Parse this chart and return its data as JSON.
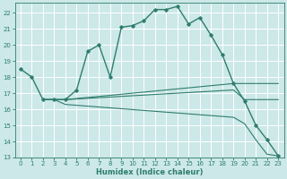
{
  "bg_color": "#cce8e8",
  "grid_color": "#ffffff",
  "line_color": "#2e7d6e",
  "xlabel": "Humidex (Indice chaleur)",
  "xlim": [
    -0.5,
    23.5
  ],
  "ylim": [
    13,
    22.6
  ],
  "yticks": [
    13,
    14,
    15,
    16,
    17,
    18,
    19,
    20,
    21,
    22
  ],
  "xticks": [
    0,
    1,
    2,
    3,
    4,
    5,
    6,
    7,
    8,
    9,
    10,
    11,
    12,
    13,
    14,
    15,
    16,
    17,
    18,
    19,
    20,
    21,
    22,
    23
  ],
  "main_curve": {
    "x": [
      0,
      1,
      2,
      3,
      4,
      5,
      6,
      7,
      8,
      9,
      10,
      11,
      12,
      13,
      14,
      15,
      16,
      17,
      18,
      19,
      20,
      21,
      22,
      23
    ],
    "y": [
      18.5,
      18.0,
      16.6,
      16.6,
      16.6,
      17.2,
      19.6,
      20.0,
      18.0,
      21.1,
      21.2,
      21.5,
      22.2,
      22.2,
      22.4,
      21.3,
      21.7,
      20.6,
      19.4,
      17.6,
      16.5,
      15.0,
      14.1,
      13.1
    ]
  },
  "secondary_curves": [
    {
      "x": [
        2,
        3,
        4,
        19,
        20,
        21,
        22,
        23
      ],
      "y": [
        16.6,
        16.6,
        16.6,
        17.6,
        17.6,
        17.6,
        17.6,
        17.6
      ]
    },
    {
      "x": [
        2,
        3,
        4,
        19,
        20,
        21,
        22,
        23
      ],
      "y": [
        16.6,
        16.6,
        16.6,
        17.2,
        16.6,
        16.6,
        16.6,
        16.6
      ]
    },
    {
      "x": [
        2,
        3,
        4,
        19,
        20,
        21,
        22,
        23
      ],
      "y": [
        16.6,
        16.6,
        16.3,
        15.5,
        15.1,
        14.1,
        13.2,
        13.1
      ]
    }
  ]
}
